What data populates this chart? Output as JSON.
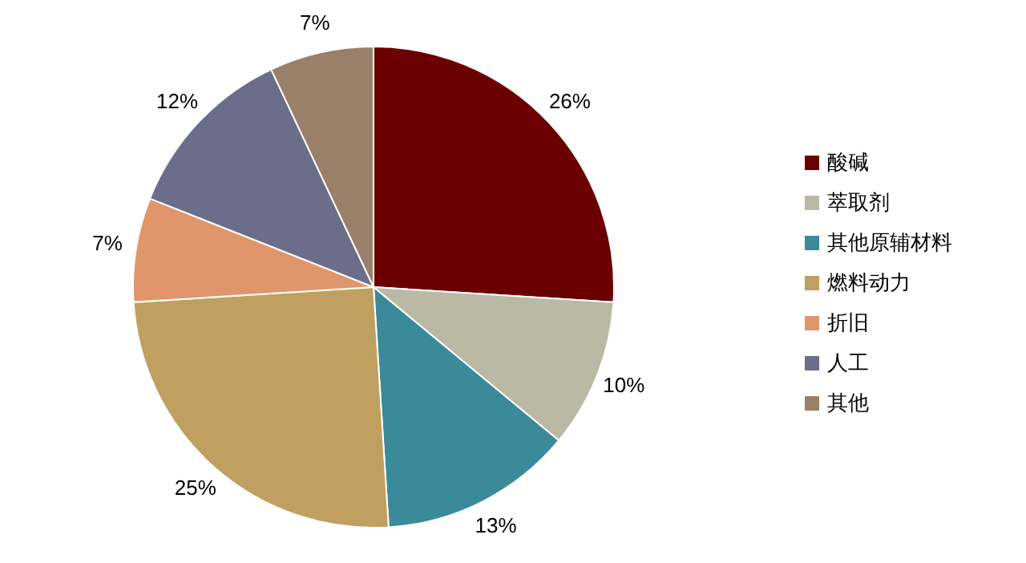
{
  "chart_data": {
    "type": "pie",
    "categories": [
      "酸碱",
      "萃取剂",
      "其他原辅材料",
      "燃料动力",
      "折旧",
      "人工",
      "其他"
    ],
    "values": [
      26,
      10,
      13,
      25,
      7,
      12,
      7
    ],
    "value_labels": [
      "26%",
      "10%",
      "13%",
      "25%",
      "7%",
      "12%",
      "7%"
    ],
    "colors": [
      "#6b0000",
      "#b9b9a6",
      "#3a8a9a",
      "#c0a060",
      "#e0956a",
      "#6a6e8a",
      "#9a8068"
    ],
    "legend": "right"
  }
}
